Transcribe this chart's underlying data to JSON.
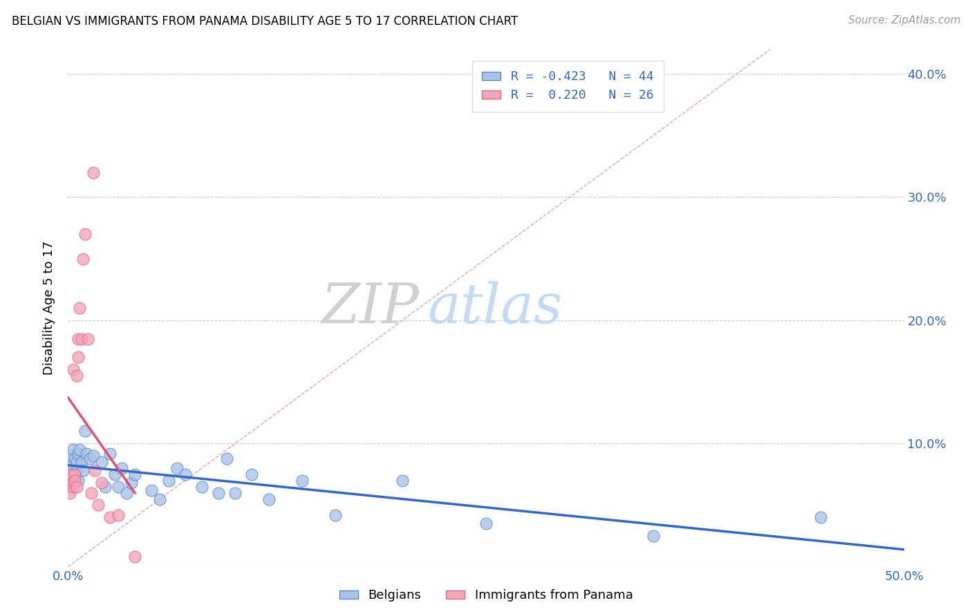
{
  "title": "BELGIAN VS IMMIGRANTS FROM PANAMA DISABILITY AGE 5 TO 17 CORRELATION CHART",
  "source": "Source: ZipAtlas.com",
  "ylabel": "Disability Age 5 to 17",
  "xlim": [
    0.0,
    0.5
  ],
  "ylim": [
    0.0,
    0.42
  ],
  "xticks": [
    0.0,
    0.1,
    0.2,
    0.3,
    0.4,
    0.5
  ],
  "yticks": [
    0.0,
    0.1,
    0.2,
    0.3,
    0.4
  ],
  "ytick_labels_right": [
    "",
    "10.0%",
    "20.0%",
    "30.0%",
    "40.0%"
  ],
  "xtick_labels": [
    "0.0%",
    "",
    "",
    "",
    "",
    "50.0%"
  ],
  "belgian_color": "#aac4e8",
  "panama_color": "#f4a7b9",
  "belgian_edge": "#5588cc",
  "panama_edge": "#dd6688",
  "trend_blue": "#3366cc",
  "trend_pink": "#e05070",
  "diagonal_color": "#e8a0a8",
  "R_belgian": -0.423,
  "N_belgian": 44,
  "R_panama": 0.22,
  "N_panama": 26,
  "legend_label_blue": "R = -0.423   N = 44",
  "legend_label_pink": "R =  0.220   N = 26",
  "belgian_x": [
    0.001,
    0.002,
    0.002,
    0.003,
    0.003,
    0.004,
    0.004,
    0.005,
    0.005,
    0.006,
    0.006,
    0.007,
    0.008,
    0.009,
    0.01,
    0.011,
    0.013,
    0.015,
    0.02,
    0.022,
    0.025,
    0.028,
    0.03,
    0.032,
    0.035,
    0.038,
    0.04,
    0.05,
    0.055,
    0.06,
    0.065,
    0.07,
    0.08,
    0.09,
    0.095,
    0.1,
    0.11,
    0.12,
    0.14,
    0.16,
    0.2,
    0.25,
    0.35,
    0.45
  ],
  "belgian_y": [
    0.08,
    0.09,
    0.082,
    0.095,
    0.075,
    0.088,
    0.072,
    0.085,
    0.078,
    0.092,
    0.07,
    0.095,
    0.085,
    0.078,
    0.11,
    0.092,
    0.088,
    0.09,
    0.085,
    0.065,
    0.092,
    0.075,
    0.065,
    0.08,
    0.06,
    0.068,
    0.075,
    0.062,
    0.055,
    0.07,
    0.08,
    0.075,
    0.065,
    0.06,
    0.088,
    0.06,
    0.075,
    0.055,
    0.07,
    0.042,
    0.07,
    0.035,
    0.025,
    0.04
  ],
  "panama_x": [
    0.001,
    0.001,
    0.002,
    0.002,
    0.003,
    0.003,
    0.003,
    0.004,
    0.004,
    0.005,
    0.005,
    0.006,
    0.006,
    0.007,
    0.008,
    0.009,
    0.01,
    0.012,
    0.014,
    0.015,
    0.016,
    0.018,
    0.02,
    0.025,
    0.03,
    0.04
  ],
  "panama_y": [
    0.065,
    0.06,
    0.07,
    0.075,
    0.16,
    0.065,
    0.068,
    0.075,
    0.07,
    0.155,
    0.065,
    0.17,
    0.185,
    0.21,
    0.185,
    0.25,
    0.27,
    0.185,
    0.06,
    0.32,
    0.078,
    0.05,
    0.068,
    0.04,
    0.042,
    0.008
  ]
}
